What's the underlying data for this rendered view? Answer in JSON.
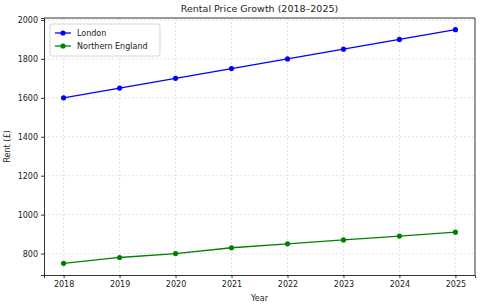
{
  "chart_data": {
    "type": "line",
    "title": "Rental Price Growth (2018–2025)",
    "x_label": "Year",
    "y_label": "Rent (£)",
    "x": [
      2018,
      2019,
      2020,
      2021,
      2022,
      2023,
      2024,
      2025
    ],
    "series": [
      {
        "name": "London",
        "color": "#0000ff",
        "marker": "circle",
        "line_style": "solid",
        "values": [
          1600,
          1650,
          1700,
          1750,
          1800,
          1850,
          1900,
          1950
        ]
      },
      {
        "name": "Northern England",
        "color": "#008000",
        "marker": "circle",
        "line_style": "solid",
        "values": [
          750,
          780,
          800,
          830,
          850,
          870,
          890,
          910
        ]
      }
    ],
    "xlim": [
      2017.65,
      2025.35
    ],
    "xticks": [
      2018,
      2019,
      2020,
      2021,
      2022,
      2023,
      2024,
      2025
    ],
    "ylim": [
      690,
      2010
    ],
    "yticks": [
      800,
      1000,
      1200,
      1400,
      1600,
      1800,
      2000
    ],
    "grid": true,
    "legend": "upper left"
  }
}
